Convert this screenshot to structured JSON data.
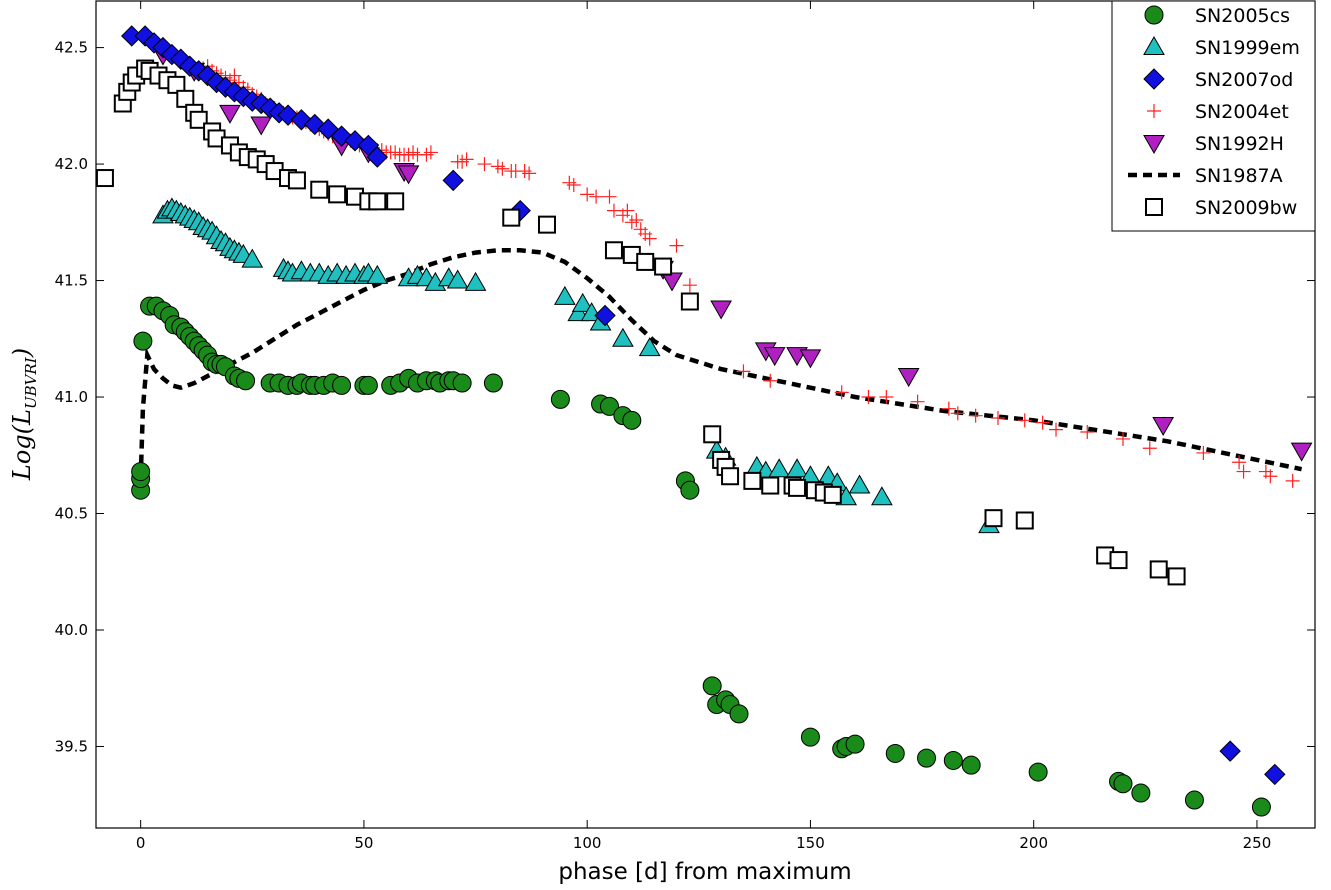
{
  "chart_data": {
    "type": "scatter",
    "title": "",
    "xlabel": "phase [d] from maximum",
    "ylabel": "Log(",
    "ylabel_main": "Log(L",
    "ylabel_sub": "UBVRI",
    "ylabel_close": ")",
    "xlim": [
      -10,
      263
    ],
    "ylim": [
      39.15,
      42.7
    ],
    "xticks": [
      0,
      50,
      100,
      150,
      200,
      250
    ],
    "yticks": [
      39.5,
      40.0,
      40.5,
      41.0,
      41.5,
      42.0,
      42.5
    ],
    "xtick_labels": [
      "0",
      "50",
      "100",
      "150",
      "200",
      "250"
    ],
    "ytick_labels": [
      "39.5",
      "40.0",
      "40.5",
      "41.0",
      "41.5",
      "42.0",
      "42.5"
    ],
    "grid": false,
    "legend_position": "top-right",
    "series": [
      {
        "name": "SN2005cs",
        "marker": "circle",
        "color": "#1a8a1a",
        "x": [
          0,
          0,
          0,
          0.5,
          2,
          3.5,
          5,
          6.5,
          7.5,
          9,
          10,
          11,
          12,
          13,
          14,
          15,
          16,
          17,
          18,
          19,
          21,
          22,
          23.5,
          29,
          31,
          33,
          35,
          36,
          38,
          39,
          41,
          43,
          45,
          50,
          51,
          56,
          58,
          60,
          62,
          64,
          66,
          67,
          69,
          70,
          72,
          79,
          94,
          103,
          105,
          108,
          110,
          122,
          123,
          128,
          129,
          131,
          132,
          134,
          150,
          157,
          158,
          160,
          169,
          176,
          182,
          186,
          201,
          219,
          220,
          224,
          236,
          251
        ],
        "y": [
          40.6,
          40.65,
          40.68,
          41.24,
          41.39,
          41.39,
          41.37,
          41.35,
          41.31,
          41.3,
          41.28,
          41.26,
          41.24,
          41.22,
          41.2,
          41.18,
          41.15,
          41.14,
          41.14,
          41.13,
          41.09,
          41.08,
          41.07,
          41.06,
          41.06,
          41.05,
          41.05,
          41.06,
          41.05,
          41.05,
          41.05,
          41.06,
          41.05,
          41.05,
          41.05,
          41.05,
          41.06,
          41.08,
          41.06,
          41.07,
          41.07,
          41.06,
          41.07,
          41.07,
          41.06,
          41.06,
          40.99,
          40.97,
          40.96,
          40.92,
          40.9,
          40.64,
          40.6,
          39.76,
          39.68,
          39.7,
          39.68,
          39.64,
          39.54,
          39.49,
          39.5,
          39.51,
          39.47,
          39.45,
          39.44,
          39.42,
          39.39,
          39.35,
          39.34,
          39.3,
          39.27,
          39.24
        ]
      },
      {
        "name": "SN1999em",
        "marker": "triangle-up",
        "color": "#20c0c0",
        "x": [
          5,
          6,
          7,
          8,
          9,
          10,
          11,
          12,
          13,
          14,
          15,
          16,
          17,
          18,
          19,
          20,
          21,
          22,
          23,
          25,
          32,
          33,
          34,
          36,
          38,
          40,
          42,
          44,
          46,
          48,
          50,
          51,
          53,
          60,
          62,
          64,
          66,
          69,
          71,
          75,
          95,
          98,
          99,
          101,
          103,
          108,
          114,
          129,
          131,
          138,
          140,
          143,
          147,
          150,
          154,
          156,
          158,
          161,
          166,
          190
        ],
        "y": [
          41.78,
          41.8,
          41.81,
          41.8,
          41.79,
          41.78,
          41.77,
          41.76,
          41.75,
          41.73,
          41.72,
          41.71,
          41.69,
          41.67,
          41.66,
          41.64,
          41.63,
          41.62,
          41.61,
          41.59,
          41.55,
          41.54,
          41.53,
          41.54,
          41.53,
          41.53,
          41.52,
          41.53,
          41.52,
          41.53,
          41.52,
          41.53,
          41.52,
          41.51,
          41.52,
          41.51,
          41.49,
          41.51,
          41.5,
          41.49,
          41.43,
          41.36,
          41.4,
          41.36,
          41.32,
          41.25,
          41.21,
          40.77,
          40.74,
          40.7,
          40.68,
          40.69,
          40.69,
          40.66,
          40.66,
          40.63,
          40.57,
          40.62,
          40.57,
          40.45
        ]
      },
      {
        "name": "SN2007od",
        "marker": "diamond",
        "color": "#1010e0",
        "x": [
          -2,
          1,
          3,
          5,
          7,
          9,
          11,
          13,
          15,
          17,
          19,
          21,
          23,
          25,
          27,
          29,
          31,
          33,
          36,
          39,
          42,
          45,
          48,
          51,
          53,
          70,
          85,
          104,
          244,
          254
        ],
        "y": [
          42.55,
          42.55,
          42.52,
          42.5,
          42.47,
          42.45,
          42.42,
          42.4,
          42.38,
          42.35,
          42.33,
          42.31,
          42.29,
          42.27,
          42.26,
          42.24,
          42.22,
          42.21,
          42.19,
          42.17,
          42.15,
          42.12,
          42.1,
          42.08,
          42.03,
          41.93,
          41.8,
          41.35,
          39.48,
          39.38
        ]
      },
      {
        "name": "SN2004et",
        "marker": "plus",
        "color": "#ff2020",
        "x": [
          13,
          14,
          15,
          16,
          17,
          18,
          19,
          20,
          21,
          22,
          23,
          24,
          25,
          26,
          27,
          28,
          29,
          30,
          31,
          32,
          33,
          34,
          35,
          36,
          37,
          38,
          39,
          40,
          41,
          42,
          43,
          44,
          45,
          46,
          47,
          48,
          49,
          50,
          51,
          52,
          53,
          54,
          55,
          56,
          57,
          58,
          59,
          60,
          61,
          62,
          64,
          65,
          71,
          72,
          73,
          77,
          80,
          81,
          83,
          84,
          86,
          87,
          96,
          97,
          100,
          102,
          105,
          106,
          108,
          109,
          110,
          111,
          112,
          113,
          114,
          120,
          123,
          135,
          141,
          157,
          163,
          167,
          174,
          181,
          183,
          187,
          192,
          198,
          202,
          205,
          212,
          220,
          226,
          238,
          246,
          247,
          252,
          253,
          258
        ],
        "y": [
          42.4,
          42.41,
          42.42,
          42.4,
          42.39,
          42.38,
          42.37,
          42.36,
          42.38,
          42.35,
          42.33,
          42.32,
          42.3,
          42.29,
          42.28,
          42.26,
          42.25,
          42.24,
          42.23,
          42.22,
          42.21,
          42.2,
          42.2,
          42.19,
          42.18,
          42.17,
          42.16,
          42.15,
          42.14,
          42.13,
          42.12,
          42.12,
          42.11,
          42.1,
          42.1,
          42.09,
          42.08,
          42.08,
          42.07,
          42.07,
          42.06,
          42.06,
          42.05,
          42.05,
          42.05,
          42.04,
          42.04,
          42.04,
          42.05,
          42.04,
          42.04,
          42.05,
          42.01,
          42.01,
          42.02,
          42.0,
          41.99,
          41.98,
          41.97,
          41.97,
          41.97,
          41.96,
          41.92,
          41.91,
          41.87,
          41.86,
          41.86,
          41.8,
          41.78,
          41.8,
          41.75,
          41.76,
          41.72,
          41.7,
          41.68,
          41.65,
          41.48,
          41.11,
          41.07,
          41.02,
          41.0,
          41.0,
          40.98,
          40.95,
          40.93,
          40.92,
          40.91,
          40.9,
          40.89,
          40.86,
          40.85,
          40.82,
          40.78,
          40.76,
          40.72,
          40.68,
          40.68,
          40.66,
          40.64
        ]
      },
      {
        "name": "SN1992H",
        "marker": "triangle-down",
        "color": "#b020c0",
        "x": [
          5,
          12,
          20,
          27,
          45,
          51,
          59,
          60,
          117,
          119,
          130,
          140,
          142,
          147,
          150,
          172,
          229,
          260
        ],
        "y": [
          42.47,
          42.4,
          42.22,
          42.17,
          42.08,
          42.05,
          41.97,
          41.96,
          41.55,
          41.5,
          41.38,
          41.2,
          41.18,
          41.18,
          41.17,
          41.09,
          40.88,
          40.77
        ]
      },
      {
        "name": "SN1987A",
        "marker": "dashed-line",
        "color": "#000000",
        "x": [
          0,
          0.5,
          1.5,
          3,
          5,
          7,
          9,
          12,
          16,
          20,
          25,
          30,
          35,
          40,
          45,
          50,
          55,
          60,
          65,
          70,
          75,
          80,
          85,
          90,
          95,
          100,
          105,
          110,
          115,
          120,
          130,
          140,
          150,
          160,
          170,
          180,
          190,
          200,
          210,
          220,
          230,
          240,
          250,
          260
        ],
        "y": [
          40.65,
          40.95,
          41.18,
          41.12,
          41.08,
          41.05,
          41.04,
          41.06,
          41.1,
          41.14,
          41.19,
          41.25,
          41.31,
          41.36,
          41.41,
          41.46,
          41.5,
          41.53,
          41.57,
          41.6,
          41.62,
          41.63,
          41.63,
          41.62,
          41.58,
          41.51,
          41.43,
          41.33,
          41.24,
          41.18,
          41.12,
          41.08,
          41.04,
          41.0,
          40.97,
          40.94,
          40.92,
          40.9,
          40.87,
          40.84,
          40.81,
          40.77,
          40.73,
          40.69
        ]
      },
      {
        "name": "SN2009bw",
        "marker": "square",
        "color": "#ffffff",
        "x": [
          -8,
          -4,
          -3,
          -2,
          -1,
          1,
          2,
          4,
          6,
          8,
          10,
          12,
          13,
          16,
          17,
          20,
          22,
          24,
          26,
          28,
          30,
          33,
          35,
          40,
          44,
          48,
          51,
          53,
          57,
          83,
          91,
          106,
          110,
          113,
          117,
          123,
          128,
          130,
          131,
          132,
          137,
          141,
          146,
          147,
          151,
          153,
          155,
          191,
          198,
          216,
          219,
          228,
          232
        ],
        "y": [
          41.94,
          42.26,
          42.31,
          42.35,
          42.38,
          42.41,
          42.4,
          42.38,
          42.36,
          42.34,
          42.28,
          42.22,
          42.19,
          42.14,
          42.11,
          42.08,
          42.05,
          42.03,
          42.02,
          42.0,
          41.97,
          41.94,
          41.93,
          41.89,
          41.87,
          41.86,
          41.84,
          41.84,
          41.84,
          41.77,
          41.74,
          41.63,
          41.61,
          41.58,
          41.56,
          41.41,
          40.84,
          40.73,
          40.7,
          40.66,
          40.64,
          40.62,
          40.62,
          40.61,
          40.6,
          40.59,
          40.58,
          40.48,
          40.47,
          40.32,
          40.3,
          40.26,
          40.23
        ]
      }
    ]
  }
}
